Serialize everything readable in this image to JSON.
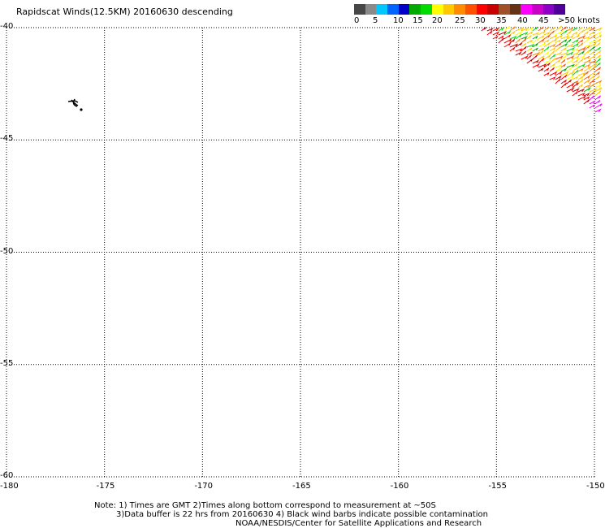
{
  "header": {
    "title": "Rapidscat Winds(12.5KM) 20160630 descending"
  },
  "legend": {
    "colors": [
      "#474747",
      "#8a8a8a",
      "#00c8ff",
      "#0064ff",
      "#0000c8",
      "#00aa00",
      "#00dc00",
      "#ffff00",
      "#ffc800",
      "#ff8c00",
      "#ff5000",
      "#ff0000",
      "#c80000",
      "#a05028",
      "#643214",
      "#ff00ff",
      "#c800c8",
      "#8c00c8",
      "#500096"
    ],
    "labels": [
      "0",
      "5",
      "10",
      "15",
      "20",
      "25",
      "30",
      "35",
      "40",
      "45",
      ">50 knots"
    ]
  },
  "map": {
    "lat_labels": [
      "-40",
      "-45",
      "-50",
      "-55",
      "-60"
    ],
    "lon_labels": [
      "-180",
      "-175",
      "-170",
      "-165",
      "-160",
      "-155",
      "-150"
    ],
    "lat_range": [
      -60,
      -40
    ],
    "lon_range": [
      -180,
      -150
    ],
    "gridlines": true
  },
  "notes": {
    "line1": "Note: 1) Times are GMT 2)Times along bottom correspond to measurement at ~50S",
    "line2": "3)Data buffer is 22 hrs from 20160630 4) Black wind barbs indicate possible contamination",
    "line3": "NOAA/NESDIS/Center for Satellite Applications and Research"
  }
}
